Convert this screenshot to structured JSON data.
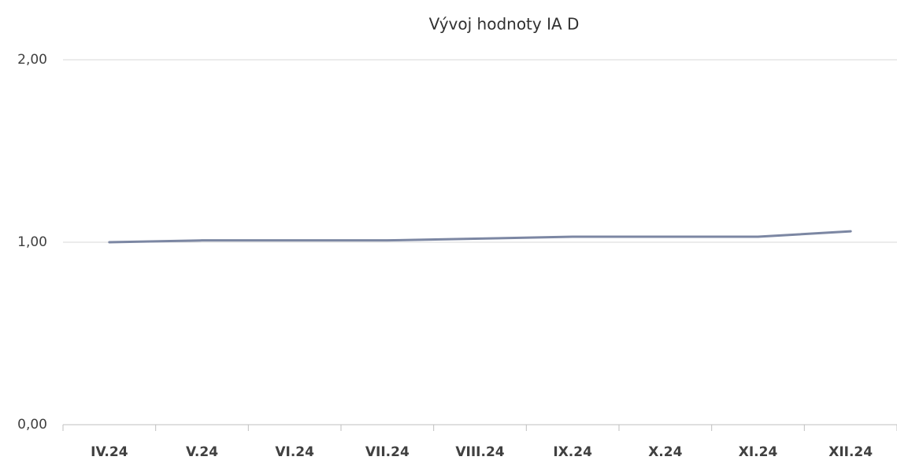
{
  "chart_data": {
    "type": "line",
    "title": "Vývoj hodnoty IA D",
    "categories": [
      "IV.24",
      "V.24",
      "VI.24",
      "VII.24",
      "VIII.24",
      "IX.24",
      "X.24",
      "XI.24",
      "XII.24"
    ],
    "series": [
      {
        "color": "#7c87a3",
        "values": [
          1.0,
          1.01,
          1.01,
          1.01,
          1.02,
          1.03,
          1.03,
          1.03,
          1.06
        ]
      }
    ],
    "ylim": [
      0,
      2
    ],
    "yticks": [
      {
        "value": 0,
        "label": "0,00"
      },
      {
        "value": 1,
        "label": "1,00"
      },
      {
        "value": 2,
        "label": "2,00"
      }
    ],
    "grid": true
  }
}
